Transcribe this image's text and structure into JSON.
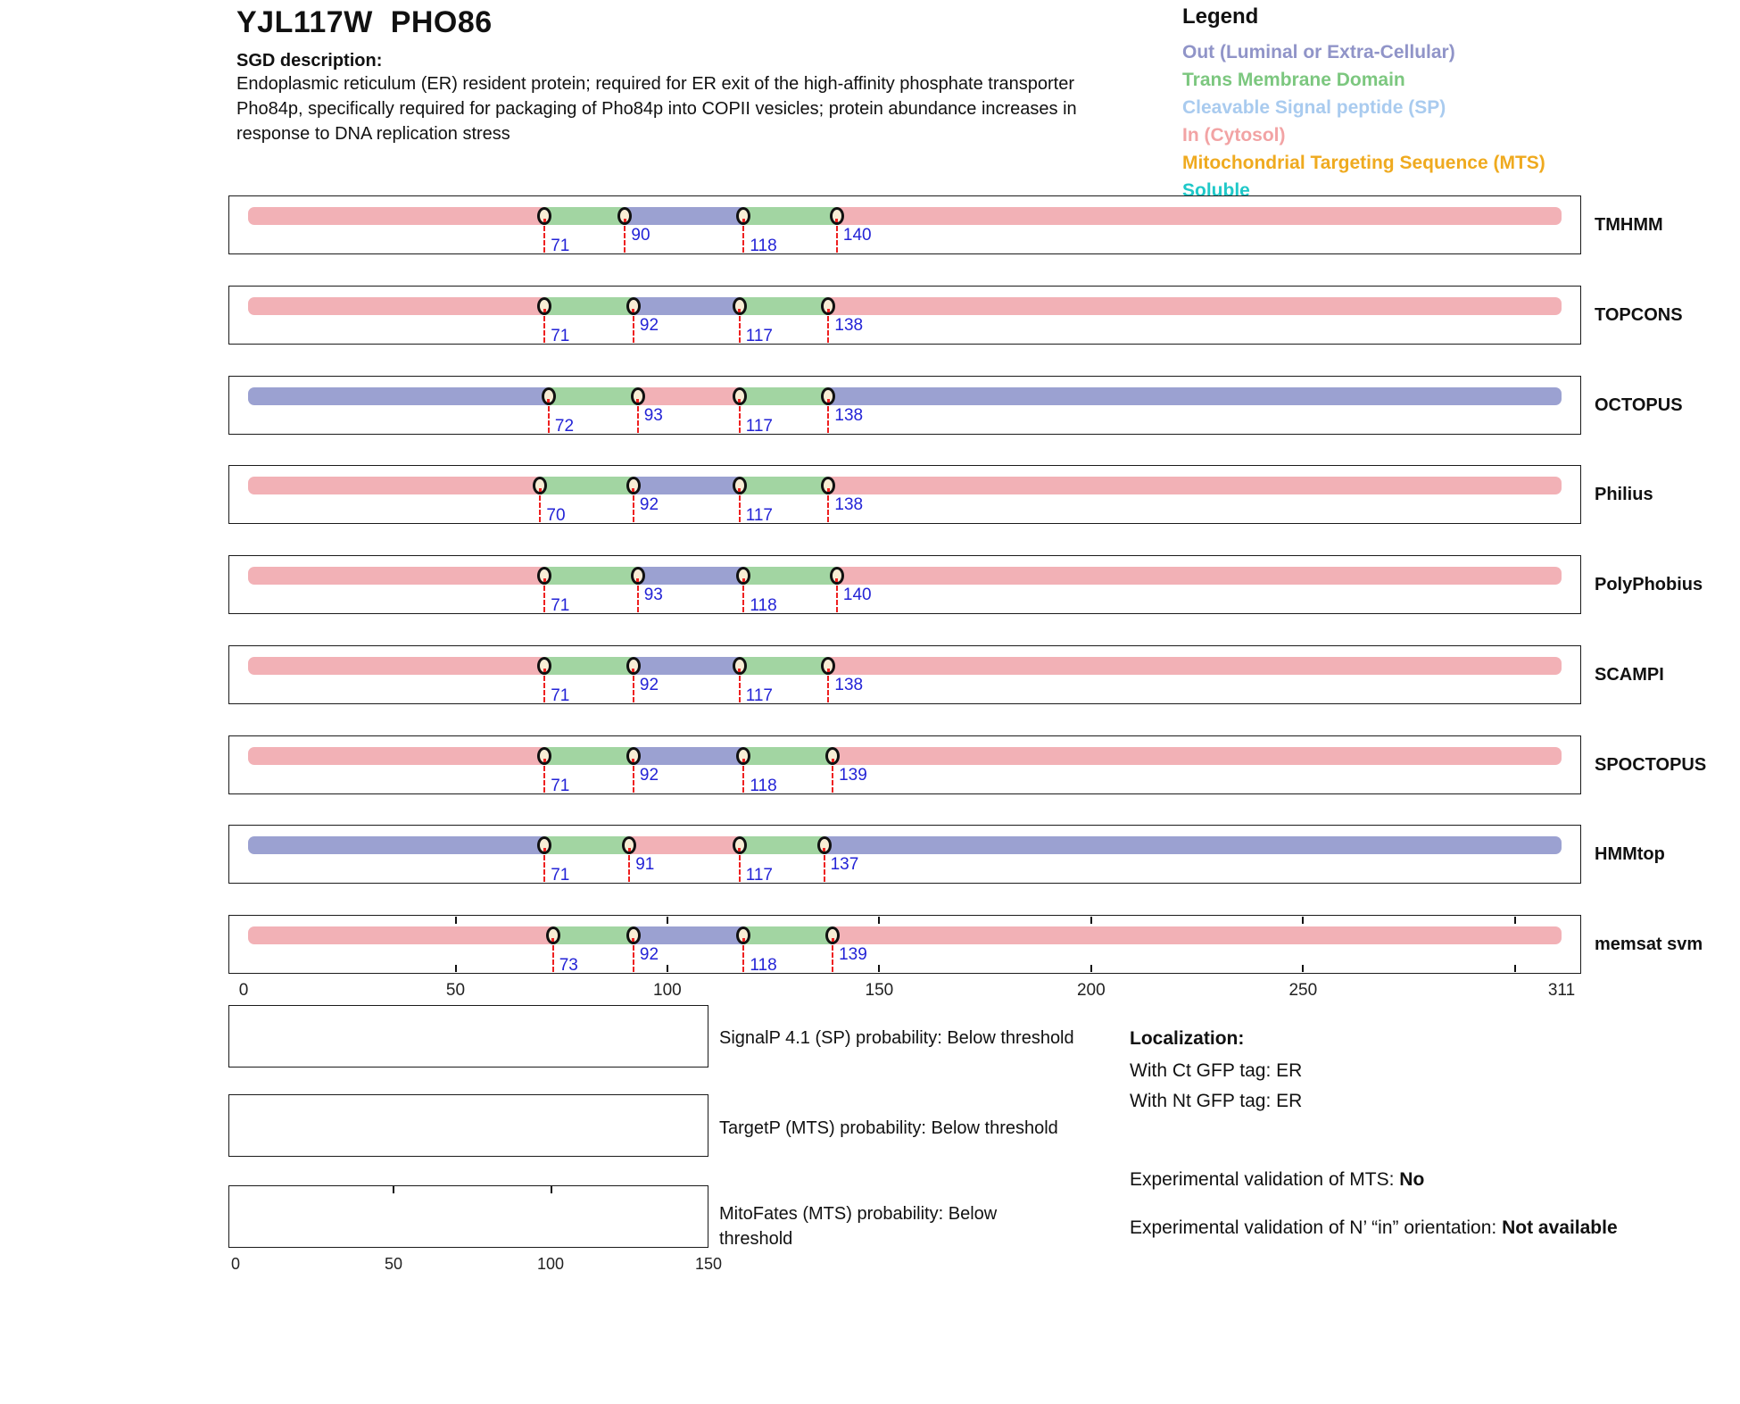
{
  "header": {
    "title": "YJL117W  PHO86",
    "sgd_label": "SGD description:",
    "description_lines": [
      "Endoplasmic reticulum (ER) resident protein; required for ER exit of the high-affinity phosphate transporter",
      "Pho84p, specifically required for packaging of Pho84p into COPII vesicles; protein abundance increases in",
      "response to DNA replication stress"
    ]
  },
  "legend": {
    "title": "Legend",
    "items": [
      {
        "key": "out",
        "label": "Out (Luminal or Extra-Cellular)",
        "color": "#9094C8"
      },
      {
        "key": "tm",
        "label": "Trans Membrane Domain",
        "color": "#7CC77F"
      },
      {
        "key": "sp",
        "label": "Cleavable Signal peptide (SP)",
        "color": "#A9CBEF"
      },
      {
        "key": "in",
        "label": "In (Cytosol)",
        "color": "#F2A3A4"
      },
      {
        "key": "mts",
        "label": "Mitochondrial Targeting Sequence (MTS)",
        "color": "#EFAA1F"
      },
      {
        "key": "soluble",
        "label": "Soluble",
        "color": "#1FC8C8"
      }
    ]
  },
  "chart_data": {
    "type": "protein-topology-tracks",
    "title": "Membrane topology predictions for YJL117W PHO86",
    "sequence_length": 311,
    "axis": {
      "min": 0,
      "max": 311,
      "tick_labels": [
        0,
        50,
        100,
        150,
        200,
        250,
        311
      ],
      "inner_ticks": [
        50,
        100,
        150,
        200,
        250,
        300
      ]
    },
    "region_colors": {
      "in": "#F2B1B6",
      "tm": "#A2D5A2",
      "out": "#9BA1D1"
    },
    "marker_fill": "#F8EDD5",
    "boundary_line_color": "#EE2020",
    "boundary_number_color": "#2323D6",
    "tracks": [
      {
        "name": "TMHMM",
        "boundaries": [
          71,
          90,
          118,
          140
        ],
        "regions": [
          "in",
          "tm",
          "out",
          "tm",
          "in"
        ]
      },
      {
        "name": "TOPCONS",
        "boundaries": [
          71,
          92,
          117,
          138
        ],
        "regions": [
          "in",
          "tm",
          "out",
          "tm",
          "in"
        ]
      },
      {
        "name": "OCTOPUS",
        "boundaries": [
          72,
          93,
          117,
          138
        ],
        "regions": [
          "out",
          "tm",
          "in",
          "tm",
          "out"
        ]
      },
      {
        "name": "Philius",
        "boundaries": [
          70,
          92,
          117,
          138
        ],
        "regions": [
          "in",
          "tm",
          "out",
          "tm",
          "in"
        ]
      },
      {
        "name": "PolyPhobius",
        "boundaries": [
          71,
          93,
          118,
          140
        ],
        "regions": [
          "in",
          "tm",
          "out",
          "tm",
          "in"
        ]
      },
      {
        "name": "SCAMPI",
        "boundaries": [
          71,
          92,
          117,
          138
        ],
        "regions": [
          "in",
          "tm",
          "out",
          "tm",
          "in"
        ]
      },
      {
        "name": "SPOCTOPUS",
        "boundaries": [
          71,
          92,
          118,
          139
        ],
        "regions": [
          "in",
          "tm",
          "out",
          "tm",
          "in"
        ]
      },
      {
        "name": "HMMtop",
        "boundaries": [
          71,
          91,
          117,
          137
        ],
        "regions": [
          "out",
          "tm",
          "in",
          "tm",
          "out"
        ]
      },
      {
        "name": "memsat svm",
        "boundaries": [
          73,
          92,
          118,
          139
        ],
        "regions": [
          "in",
          "tm",
          "out",
          "tm",
          "in"
        ]
      }
    ]
  },
  "probability_plots": [
    {
      "label": "SignalP 4.1 (SP) probability: Below threshold"
    },
    {
      "label": "TargetP (MTS) probability: Below threshold"
    },
    {
      "label": "MitoFates (MTS) probability: Below threshold",
      "axis_labels": [
        "0",
        "50",
        "100",
        "150"
      ]
    }
  ],
  "localization": {
    "heading": "Localization:",
    "lines": [
      "With Ct GFP tag: ER",
      "With Nt GFP tag: ER"
    ],
    "mts_label": "Experimental validation of MTS: ",
    "mts_value": "No",
    "orientation_label": "Experimental validation of N’ “in” orientation: ",
    "orientation_value": "Not available"
  }
}
